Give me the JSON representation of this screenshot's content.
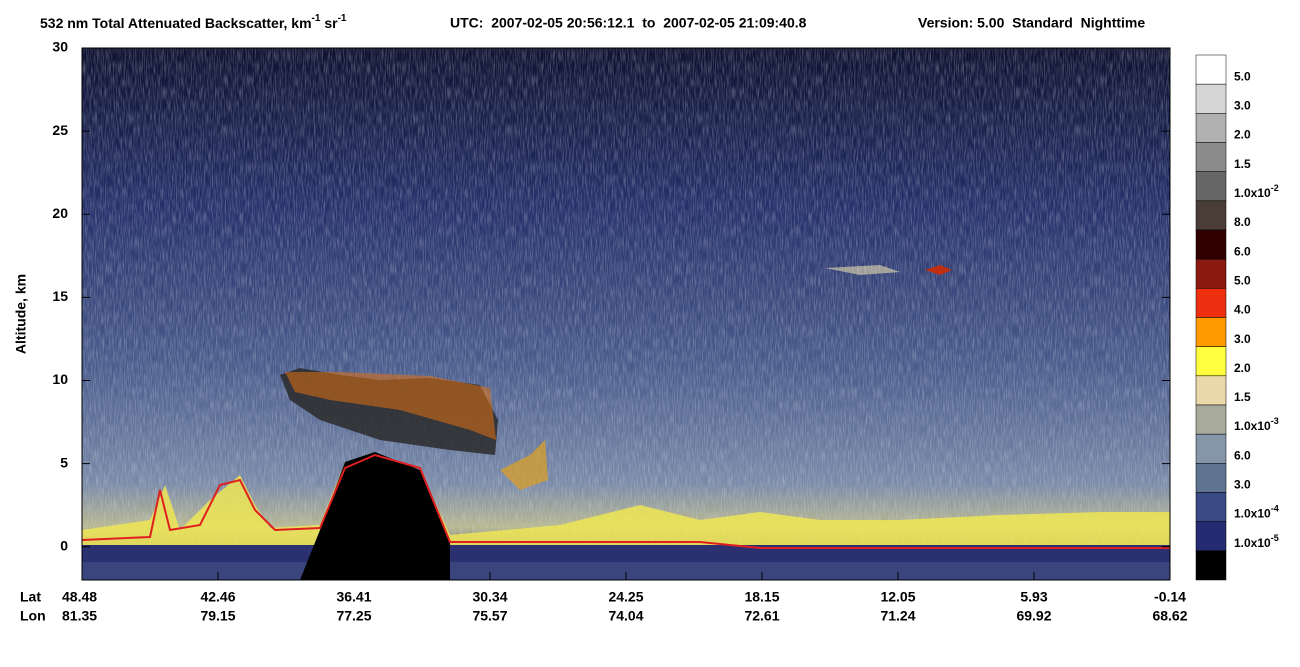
{
  "chart_data": {
    "type": "curtain",
    "title": {
      "main": "532 nm Total Attenuated Backscatter, km",
      "exp1": "-1",
      "unit2": " sr",
      "exp2": "-1",
      "utc": "UTC:  2007-02-05 20:56:12.1  to  2007-02-05 21:09:40.8",
      "version": "Version: 5.00  Standard  Nighttime"
    },
    "ylabel": "Altitude, km",
    "ylim": [
      -2,
      30
    ],
    "yticks": [
      0,
      5,
      10,
      15,
      20,
      25,
      30
    ],
    "x_rows": [
      {
        "name": "Lat",
        "values": [
          48.48,
          42.46,
          36.41,
          30.34,
          24.25,
          18.15,
          12.05,
          5.93,
          -0.14
        ]
      },
      {
        "name": "Lon",
        "values": [
          81.35,
          79.15,
          77.25,
          75.57,
          74.04,
          72.61,
          71.24,
          69.92,
          68.62
        ]
      }
    ],
    "colorbar": {
      "colors": [
        "#ffffff",
        "#d6d6d6",
        "#b0b0b0",
        "#8c8c8c",
        "#666666",
        "#4a3d38",
        "#300000",
        "#8a1a10",
        "#ee3010",
        "#ff9a00",
        "#ffff40",
        "#ead9a8",
        "#a8aa9c",
        "#8496a8",
        "#5e7490",
        "#3a4a84",
        "#242b70",
        "#000000"
      ],
      "labels": [
        "5.0",
        "3.0",
        "2.0",
        "1.5",
        {
          "mantissa": "1.0x10",
          "exponent": "-2"
        },
        "8.0",
        "6.0",
        "5.0",
        "4.0",
        "3.0",
        "2.0",
        "1.5",
        {
          "mantissa": "1.0x10",
          "exponent": "-3"
        },
        "6.0",
        "3.0",
        {
          "mantissa": "1.0x10",
          "exponent": "-4"
        },
        {
          "mantissa": "1.0x10",
          "exponent": "-5"
        }
      ]
    }
  }
}
